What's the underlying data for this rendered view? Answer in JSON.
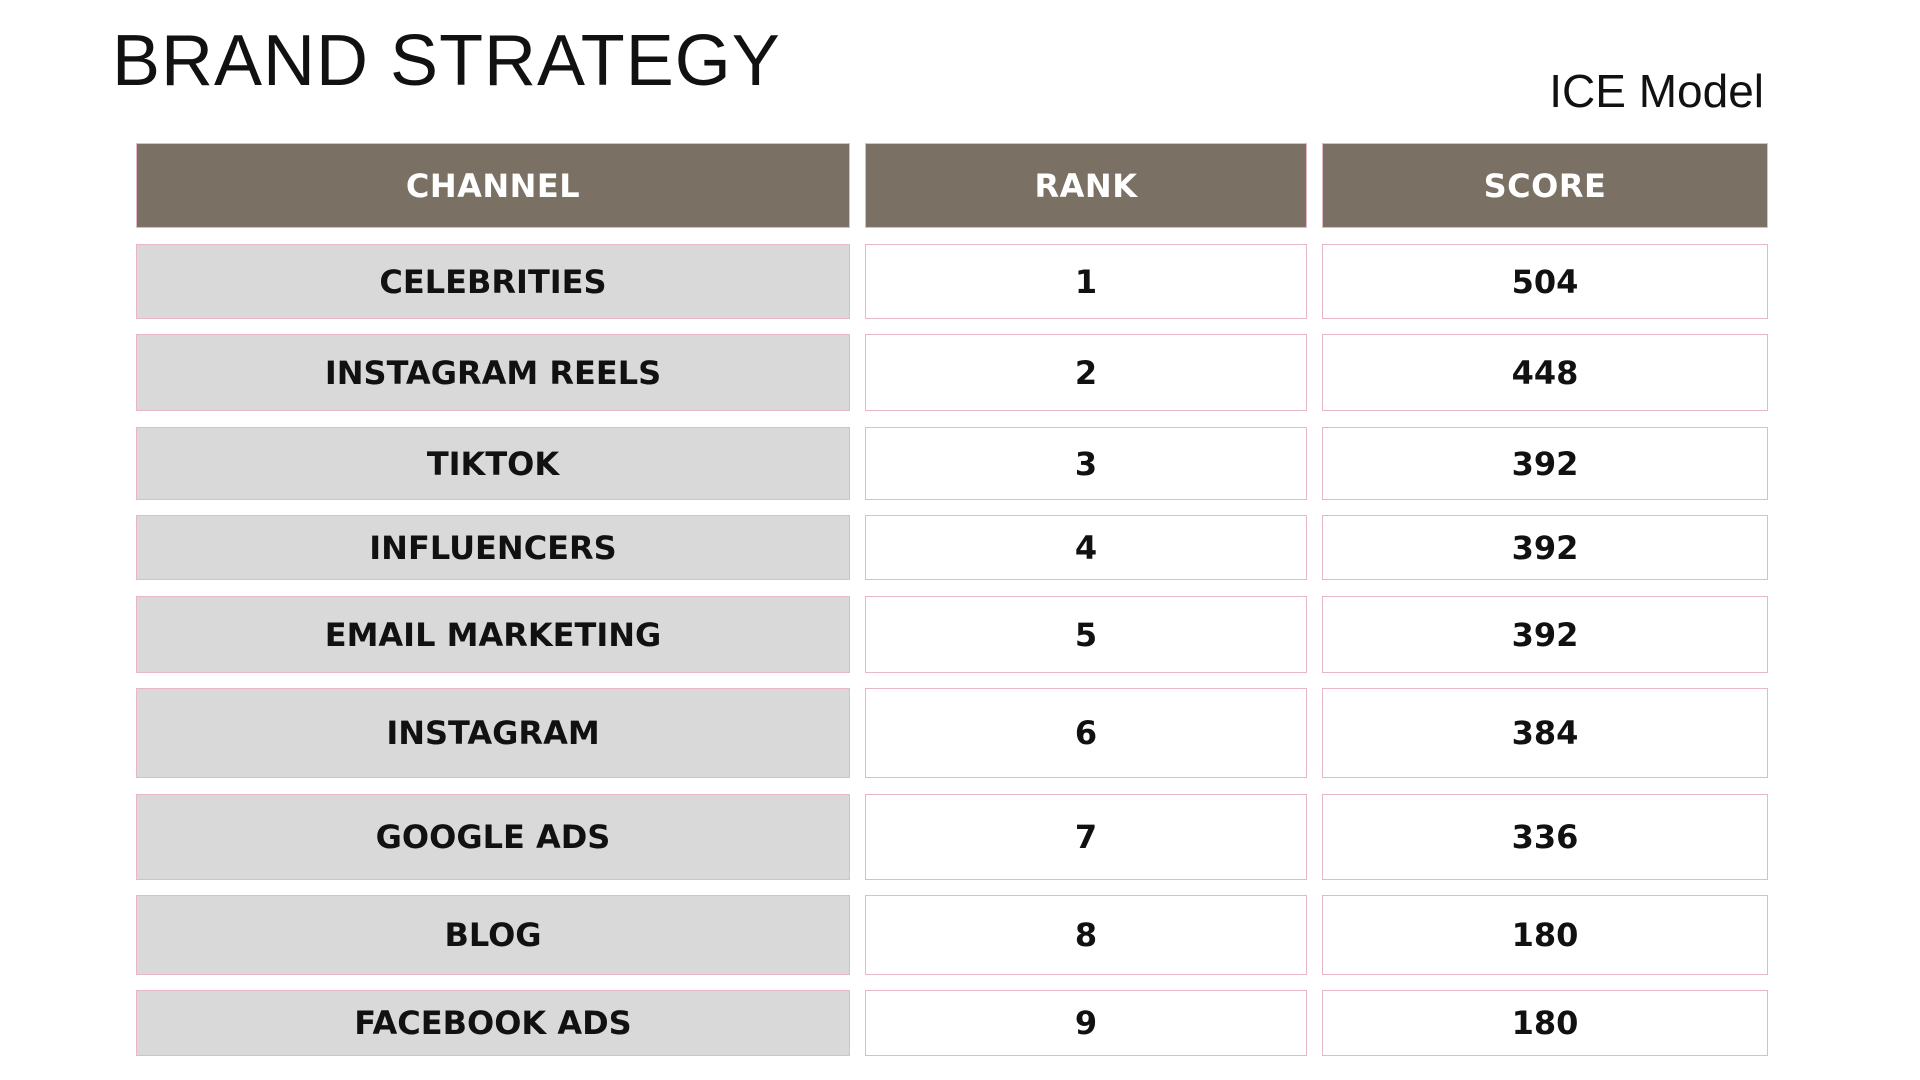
{
  "title": "BRAND STRATEGY",
  "subtitle": "ICE Model",
  "table": {
    "headers": {
      "channel": "CHANNEL",
      "rank": "RANK",
      "score": "SCORE"
    },
    "rows": [
      {
        "channel": "CELEBRITIES",
        "rank": "1",
        "score": "504"
      },
      {
        "channel": "INSTAGRAM REELS",
        "rank": "2",
        "score": "448"
      },
      {
        "channel": "TIKTOK",
        "rank": "3",
        "score": "392"
      },
      {
        "channel": "INFLUENCERS",
        "rank": "4",
        "score": "392"
      },
      {
        "channel": "EMAIL MARKETING",
        "rank": "5",
        "score": "392"
      },
      {
        "channel": "INSTAGRAM",
        "rank": "6",
        "score": "384"
      },
      {
        "channel": "GOOGLE ADS",
        "rank": "7",
        "score": "336"
      },
      {
        "channel": "BLOG",
        "rank": "8",
        "score": "180"
      },
      {
        "channel": "FACEBOOK ADS",
        "rank": "9",
        "score": "180"
      }
    ]
  },
  "colors": {
    "header_bg": "#7a7064",
    "header_text": "#ffffff",
    "channel_bg": "#d9d9d9",
    "cell_border": "#e7b7c6"
  }
}
